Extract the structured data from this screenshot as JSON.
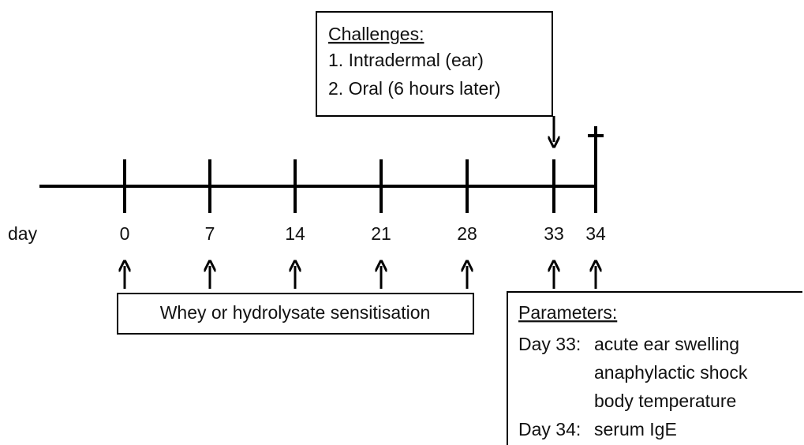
{
  "timeline": {
    "axis_label": "day",
    "days": [
      "0",
      "7",
      "14",
      "21",
      "28",
      "33",
      "34"
    ]
  },
  "challenges": {
    "title": "Challenges:",
    "items": [
      "1. Intradermal  (ear)",
      "2. Oral (6 hours later)"
    ]
  },
  "sensitisation": {
    "label": "Whey or hydrolysate sensitisation"
  },
  "parameters": {
    "title": "Parameters:",
    "rows": [
      {
        "day": "Day 33:",
        "items": [
          "acute ear swelling",
          "anaphylactic shock",
          "body temperature"
        ]
      },
      {
        "day": "Day 34:",
        "items": [
          "serum IgE"
        ]
      }
    ]
  }
}
